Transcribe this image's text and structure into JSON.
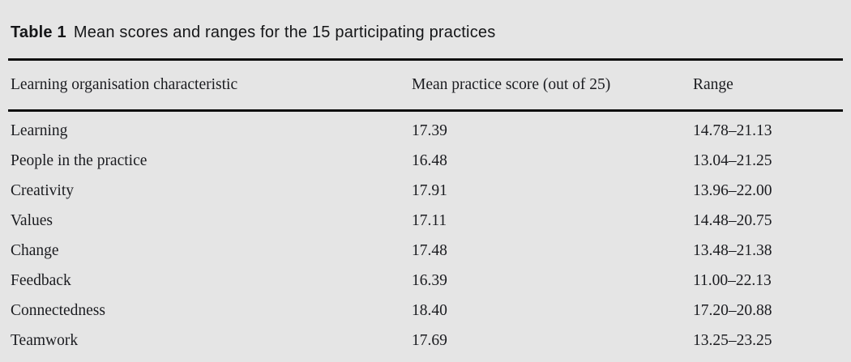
{
  "page": {
    "background_color": "#e5e5e5",
    "rule_color": "#0e0e0e",
    "text_color": "#1b1c20"
  },
  "table": {
    "label": "Table 1",
    "caption": "Mean scores and ranges for the 15 participating practices",
    "columns": [
      "Learning organisation characteristic",
      "Mean practice score (out of 25)",
      "Range"
    ],
    "rows": [
      {
        "characteristic": "Learning",
        "mean": "17.39",
        "range": "14.78–21.13"
      },
      {
        "characteristic": "People in the practice",
        "mean": "16.48",
        "range": "13.04–21.25"
      },
      {
        "characteristic": "Creativity",
        "mean": "17.91",
        "range": "13.96–22.00"
      },
      {
        "characteristic": "Values",
        "mean": "17.11",
        "range": "14.48–20.75"
      },
      {
        "characteristic": "Change",
        "mean": "17.48",
        "range": "13.48–21.38"
      },
      {
        "characteristic": "Feedback",
        "mean": "16.39",
        "range": "11.00–22.13"
      },
      {
        "characteristic": "Connectedness",
        "mean": "18.40",
        "range": "17.20–20.88"
      },
      {
        "characteristic": "Teamwork",
        "mean": "17.69",
        "range": "13.25–23.25"
      }
    ]
  }
}
